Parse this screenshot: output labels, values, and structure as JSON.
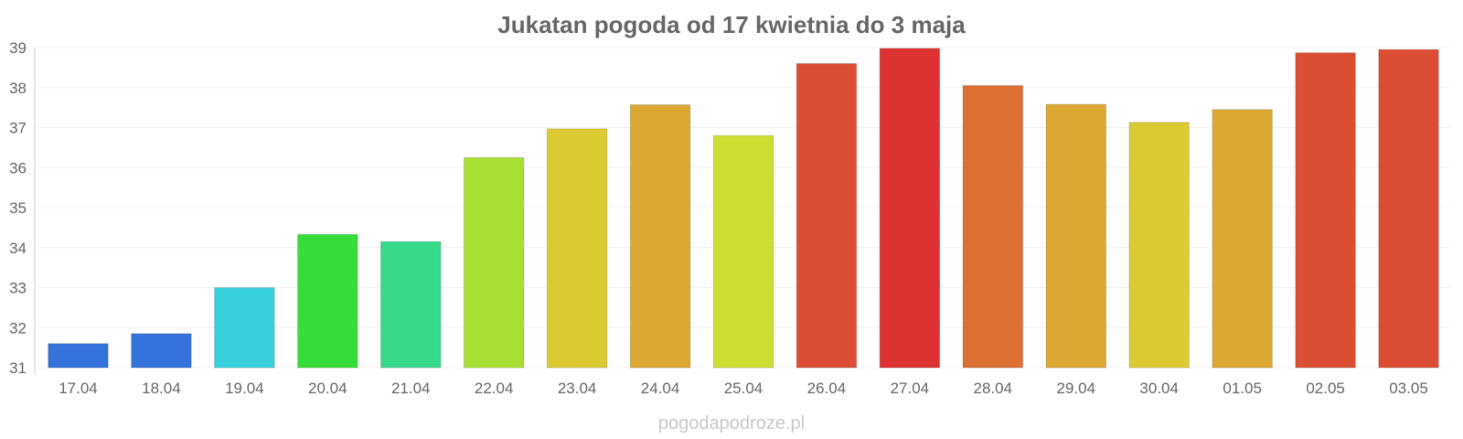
{
  "chart_data": {
    "type": "bar",
    "title": "Jukatan pogoda od 17 kwietnia do 3 maja",
    "xlabel": "",
    "ylabel": "",
    "categories": [
      "17.04",
      "18.04",
      "19.04",
      "20.04",
      "21.04",
      "22.04",
      "23.04",
      "24.04",
      "25.04",
      "26.04",
      "27.04",
      "28.04",
      "29.04",
      "30.04",
      "01.05",
      "02.05",
      "03.05"
    ],
    "values": [
      31.6,
      31.85,
      33.0,
      34.33,
      34.15,
      36.25,
      36.97,
      37.57,
      36.8,
      38.6,
      38.98,
      38.05,
      37.58,
      37.13,
      37.45,
      38.87,
      38.95
    ],
    "colors": [
      "#3373DB",
      "#3373DB",
      "#37CFDC",
      "#36DD38",
      "#37DA8A",
      "#A9DE32",
      "#DCCA33",
      "#DCA833",
      "#CEDD32",
      "#DC4E33",
      "#DC3232",
      "#DC6F33",
      "#DCA833",
      "#DCCA33",
      "#DCA833",
      "#DC4E33",
      "#DC4E33"
    ],
    "ylim": [
      31,
      39
    ],
    "yticks": [
      "31",
      "32",
      "33",
      "34",
      "35",
      "36",
      "37",
      "38",
      "39"
    ],
    "grid": true,
    "legend": "none"
  },
  "footer": {
    "source": "pogodapodroze.pl"
  }
}
